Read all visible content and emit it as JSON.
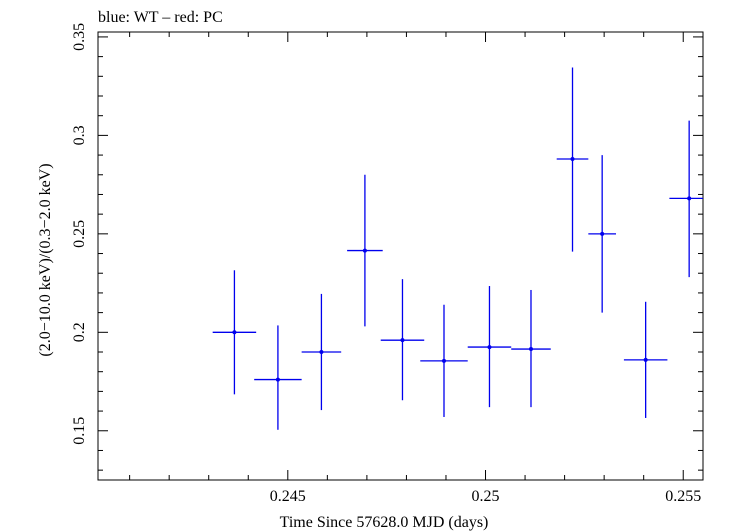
{
  "chart_data": {
    "type": "scatter",
    "title": "blue: WT – red: PC",
    "xlabel": "Time Since 57628.0 MJD (days)",
    "ylabel": "(2.0−10.0 keV)/(0.3−2.0 keV)",
    "xlim": [
      0.2402,
      0.2555
    ],
    "ylim": [
      0.125,
      0.3525
    ],
    "xticks": [
      0.245,
      0.25,
      0.255
    ],
    "xtick_labels": [
      "0.245",
      "0.25",
      "0.255"
    ],
    "yticks": [
      0.15,
      0.2,
      0.25,
      0.3,
      0.35
    ],
    "ytick_labels": [
      "0.15",
      "0.2",
      "0.25",
      "0.3",
      "0.35"
    ],
    "series": [
      {
        "name": "WT",
        "color": "#0000ee",
        "points": [
          {
            "x": 0.24365,
            "xerr": 0.00055,
            "y": 0.2,
            "yerr_lo": 0.0315,
            "yerr_hi": 0.0315
          },
          {
            "x": 0.24475,
            "xerr": 0.0006,
            "y": 0.176,
            "yerr_lo": 0.0255,
            "yerr_hi": 0.0275
          },
          {
            "x": 0.24585,
            "xerr": 0.0005,
            "y": 0.19,
            "yerr_lo": 0.0295,
            "yerr_hi": 0.0295
          },
          {
            "x": 0.24695,
            "xerr": 0.00045,
            "y": 0.2415,
            "yerr_lo": 0.0385,
            "yerr_hi": 0.0385
          },
          {
            "x": 0.2479,
            "xerr": 0.00055,
            "y": 0.196,
            "yerr_lo": 0.0305,
            "yerr_hi": 0.031
          },
          {
            "x": 0.24895,
            "xerr": 0.0006,
            "y": 0.1855,
            "yerr_lo": 0.0285,
            "yerr_hi": 0.0285
          },
          {
            "x": 0.2501,
            "xerr": 0.00055,
            "y": 0.1925,
            "yerr_lo": 0.0305,
            "yerr_hi": 0.031
          },
          {
            "x": 0.25115,
            "xerr": 0.0005,
            "y": 0.1915,
            "yerr_lo": 0.0295,
            "yerr_hi": 0.03
          },
          {
            "x": 0.2522,
            "xerr": 0.0004,
            "y": 0.288,
            "yerr_lo": 0.047,
            "yerr_hi": 0.0465
          },
          {
            "x": 0.25295,
            "xerr": 0.00035,
            "y": 0.25,
            "yerr_lo": 0.04,
            "yerr_hi": 0.04
          },
          {
            "x": 0.25405,
            "xerr": 0.00055,
            "y": 0.186,
            "yerr_lo": 0.0295,
            "yerr_hi": 0.0295
          },
          {
            "x": 0.25515,
            "xerr": 0.0005,
            "y": 0.268,
            "yerr_lo": 0.04,
            "yerr_hi": 0.0395
          }
        ]
      }
    ]
  }
}
